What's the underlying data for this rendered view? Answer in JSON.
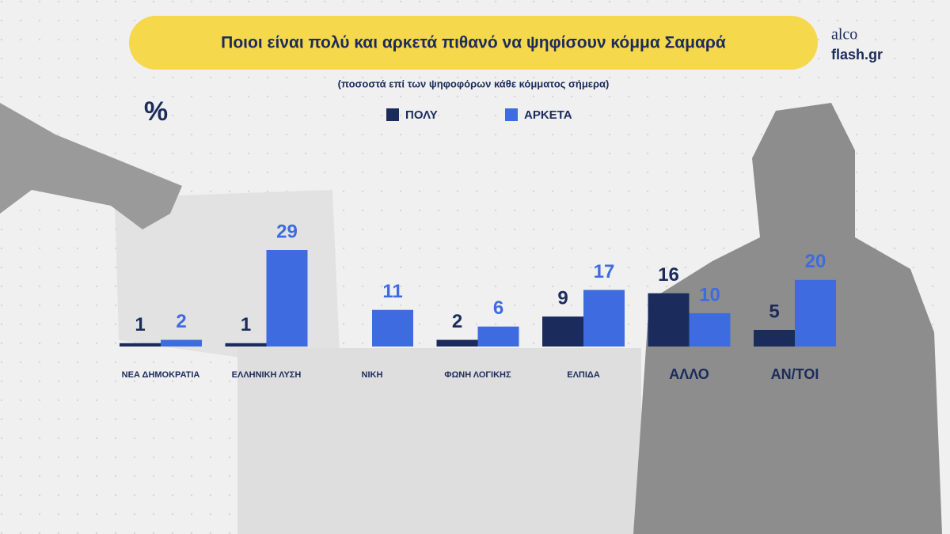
{
  "chart_data": {
    "type": "bar",
    "title": "Ποιοι είναι πολύ και αρκετά πιθανό να ψηφίσουν κόμμα Σαμαρά",
    "subtitle": "(ποσοστά επί των ψηφοφόρων κάθε κόμματος σήμερα)",
    "unit_label": "%",
    "brand": [
      "alco",
      "flash.gr"
    ],
    "categories": [
      "ΝΕΑ ΔΗΜΟΚΡΑΤΙΑ",
      "ΕΛΛΗΝΙΚΗ ΛΥΣΗ",
      "ΝΙΚΗ",
      "ΦΩΝΗ ΛΟΓΙΚΗΣ",
      "ΕΛΠΙΔΑ",
      "ΑΛΛΟ",
      "ΑΝ/ΤΟΙ"
    ],
    "series": [
      {
        "name": "ΠΟΛΥ",
        "color": "#1b2b5c",
        "values": [
          1,
          1,
          null,
          2,
          9,
          16,
          5
        ]
      },
      {
        "name": "ΑΡΚΕΤΑ",
        "color": "#3e6ce0",
        "values": [
          2,
          29,
          11,
          6,
          17,
          10,
          20
        ]
      }
    ]
  }
}
